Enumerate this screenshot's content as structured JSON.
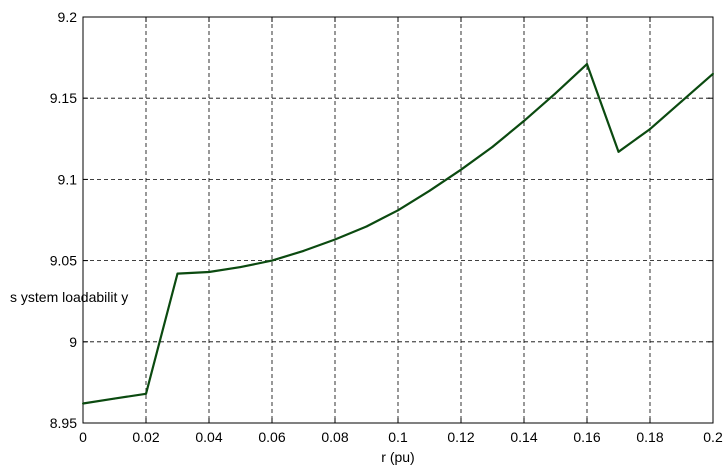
{
  "chart_data": {
    "type": "line",
    "title": "",
    "xlabel": "r (pu)",
    "ylabel": "s ystem loadabilit y",
    "xlim": [
      0,
      0.2
    ],
    "ylim": [
      8.95,
      9.2
    ],
    "grid": true,
    "x_ticks": [
      "0",
      "0.02",
      "0.04",
      "0.06",
      "0.08",
      "0.1",
      "0.12",
      "0.14",
      "0.16",
      "0.18",
      "0.2"
    ],
    "y_ticks": [
      "8.95",
      "9",
      "9.05",
      "9.1",
      "9.15",
      "9.2"
    ],
    "series": [
      {
        "color": "#0b4a10",
        "x": [
          0,
          0.01,
          0.02,
          0.03,
          0.04,
          0.05,
          0.06,
          0.07,
          0.08,
          0.09,
          0.1,
          0.11,
          0.12,
          0.13,
          0.14,
          0.15,
          0.16,
          0.17,
          0.18,
          0.19,
          0.2
        ],
        "y": [
          8.962,
          8.965,
          8.968,
          9.042,
          9.043,
          9.046,
          9.05,
          9.056,
          9.063,
          9.071,
          9.081,
          9.093,
          9.106,
          9.12,
          9.136,
          9.153,
          9.171,
          9.117,
          9.131,
          9.148,
          9.165
        ]
      }
    ]
  }
}
